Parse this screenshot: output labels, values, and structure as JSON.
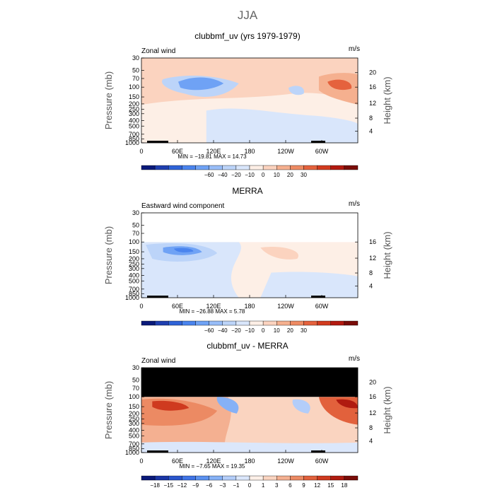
{
  "page_title": "JJA",
  "chart_data": [
    {
      "type": "heatmap",
      "title": "clubbmf_uv (yrs 1979-1979)",
      "field_label": "Zonal wind",
      "units": "m/s",
      "ylabel": "Pressure (mb)",
      "ylabel_right": "Height (km)",
      "pressure_ticks": [
        "30",
        "50",
        "70",
        "100",
        "150",
        "200",
        "250",
        "300",
        "400",
        "500",
        "700",
        "850",
        "1000"
      ],
      "height_ticks": [
        "20",
        "16",
        "12",
        "8",
        "4"
      ],
      "lon_ticks": [
        "0",
        "60E",
        "120E",
        "180",
        "120W",
        "60W"
      ],
      "stats": "MIN = −19.81   MAX =  14.73",
      "colorbar": {
        "labels": [
          "−60",
          "−40",
          "−20",
          "−10",
          "0",
          "10",
          "20",
          "30"
        ],
        "colors": [
          "#0a1a7a",
          "#1f3fb0",
          "#2f63d8",
          "#4a84ee",
          "#6fa2f5",
          "#98bdf8",
          "#bcd4f9",
          "#d9e6fb",
          "#fdefe6",
          "#fbd3bf",
          "#f5b08f",
          "#ee8b63",
          "#e5623d",
          "#d23b1f",
          "#b31a10",
          "#7a0c08"
        ]
      },
      "data_mask_top_mb": null
    },
    {
      "type": "heatmap",
      "title": "MERRA",
      "field_label": "Eastward wind component",
      "units": "m/s",
      "ylabel": "Pressure (mb)",
      "ylabel_right": "Height (km)",
      "pressure_ticks": [
        "30",
        "50",
        "70",
        "100",
        "150",
        "200",
        "250",
        "300",
        "400",
        "500",
        "700",
        "850",
        "1000"
      ],
      "height_ticks": [
        "16",
        "12",
        "8",
        "4"
      ],
      "lon_ticks": [
        "0",
        "60E",
        "120E",
        "180",
        "120W",
        "60W"
      ],
      "stats": "MIN = −26.88   MAX =   5.78",
      "colorbar": {
        "labels": [
          "−60",
          "−40",
          "−20",
          "−10",
          "0",
          "10",
          "20",
          "30"
        ],
        "colors": [
          "#0a1a7a",
          "#1f3fb0",
          "#2f63d8",
          "#4a84ee",
          "#6fa2f5",
          "#98bdf8",
          "#bcd4f9",
          "#d9e6fb",
          "#fdefe6",
          "#fbd3bf",
          "#f5b08f",
          "#ee8b63",
          "#e5623d",
          "#d23b1f",
          "#b31a10",
          "#7a0c08"
        ]
      },
      "data_mask_top_mb": 100
    },
    {
      "type": "heatmap",
      "title": "clubbmf_uv - MERRA",
      "field_label": "Zonal wind",
      "units": "m/s",
      "ylabel": "Pressure (mb)",
      "ylabel_right": "Height (km)",
      "pressure_ticks": [
        "30",
        "50",
        "70",
        "100",
        "150",
        "200",
        "250",
        "300",
        "400",
        "500",
        "700",
        "850",
        "1000"
      ],
      "height_ticks": [
        "20",
        "16",
        "12",
        "8",
        "4"
      ],
      "lon_ticks": [
        "0",
        "60E",
        "120E",
        "180",
        "120W",
        "60W"
      ],
      "stats": "MIN =  −7.65   MAX =  19.35",
      "colorbar": {
        "labels": [
          "−18",
          "−15",
          "−12",
          "−9",
          "−6",
          "−3",
          "−1",
          "0",
          "1",
          "3",
          "6",
          "9",
          "12",
          "15",
          "18"
        ],
        "colors": [
          "#0a1a7a",
          "#1a35a5",
          "#2a55cc",
          "#3f74e6",
          "#5b91f0",
          "#86b1f6",
          "#b3cdf9",
          "#dbe7fb",
          "#fdf0e8",
          "#fad4c0",
          "#f4b091",
          "#ec8a63",
          "#e2613c",
          "#cf3a1f",
          "#b01b10",
          "#7a0c08"
        ]
      },
      "data_mask_top_mb": 100
    }
  ]
}
